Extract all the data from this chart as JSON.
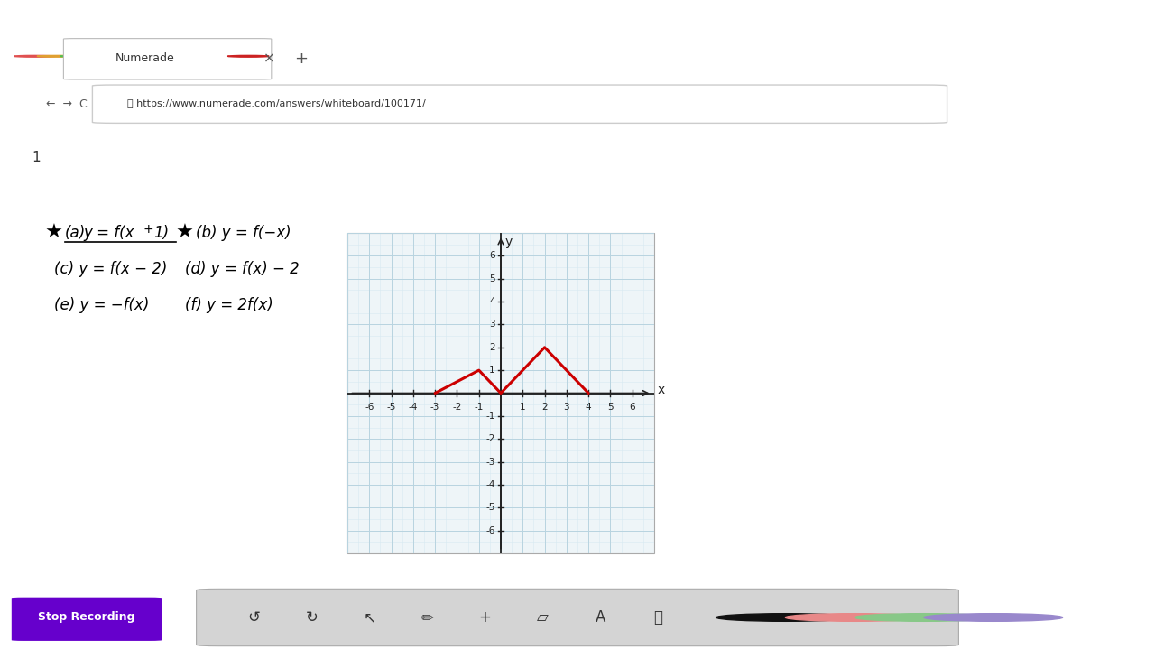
{
  "bg_color": "#ffffff",
  "content_bg": "#ffffff",
  "grid_bg": "#eef4f8",
  "grid_color_major": "#b8d4e0",
  "grid_color_minor": "#d8eaf2",
  "axis_color": "#222222",
  "curve_color": "#cc0000",
  "curve_points_x": [
    -3,
    -1,
    0,
    2,
    4
  ],
  "curve_points_y": [
    0,
    1,
    0,
    2,
    0
  ],
  "xlim": [
    -7,
    7
  ],
  "ylim": [
    -7,
    7
  ],
  "xticks": [
    -6,
    -5,
    -4,
    -3,
    -2,
    -1,
    1,
    2,
    3,
    4,
    5,
    6
  ],
  "yticks": [
    -6,
    -5,
    -4,
    -3,
    -2,
    -1,
    1,
    2,
    3,
    4,
    5,
    6
  ],
  "xlabel": "x",
  "ylabel": "y",
  "curve_linewidth": 2.2,
  "title_bar_color": "#2a2a2a",
  "tab_bar_color": "#dcdcdc",
  "address_bar_color": "#f5f5f5",
  "toolbar_bg": "#c8c8c8",
  "toolbar_panel_bg": "#d8d8d8",
  "stop_btn_color": "#6600cc",
  "url_text": "https://www.numerade.com/answers/whiteboard/100171/",
  "tab_text": "Numerade",
  "page_num": "1",
  "dot_colors": [
    "#e05050",
    "#e0a030",
    "#50c050"
  ],
  "circle_colors": [
    "#222222",
    "#e88080",
    "#90c890",
    "#a888d0"
  ],
  "text_a": "(a) y = f(x + 1)",
  "text_b": "(b) y = f(−x)",
  "text_c": "(c) y = f(x − 2)",
  "text_d": "(d) y = f(x) − 2",
  "text_e": "(e) y = −f(x)",
  "text_f": "(f) y = 2f(x)"
}
